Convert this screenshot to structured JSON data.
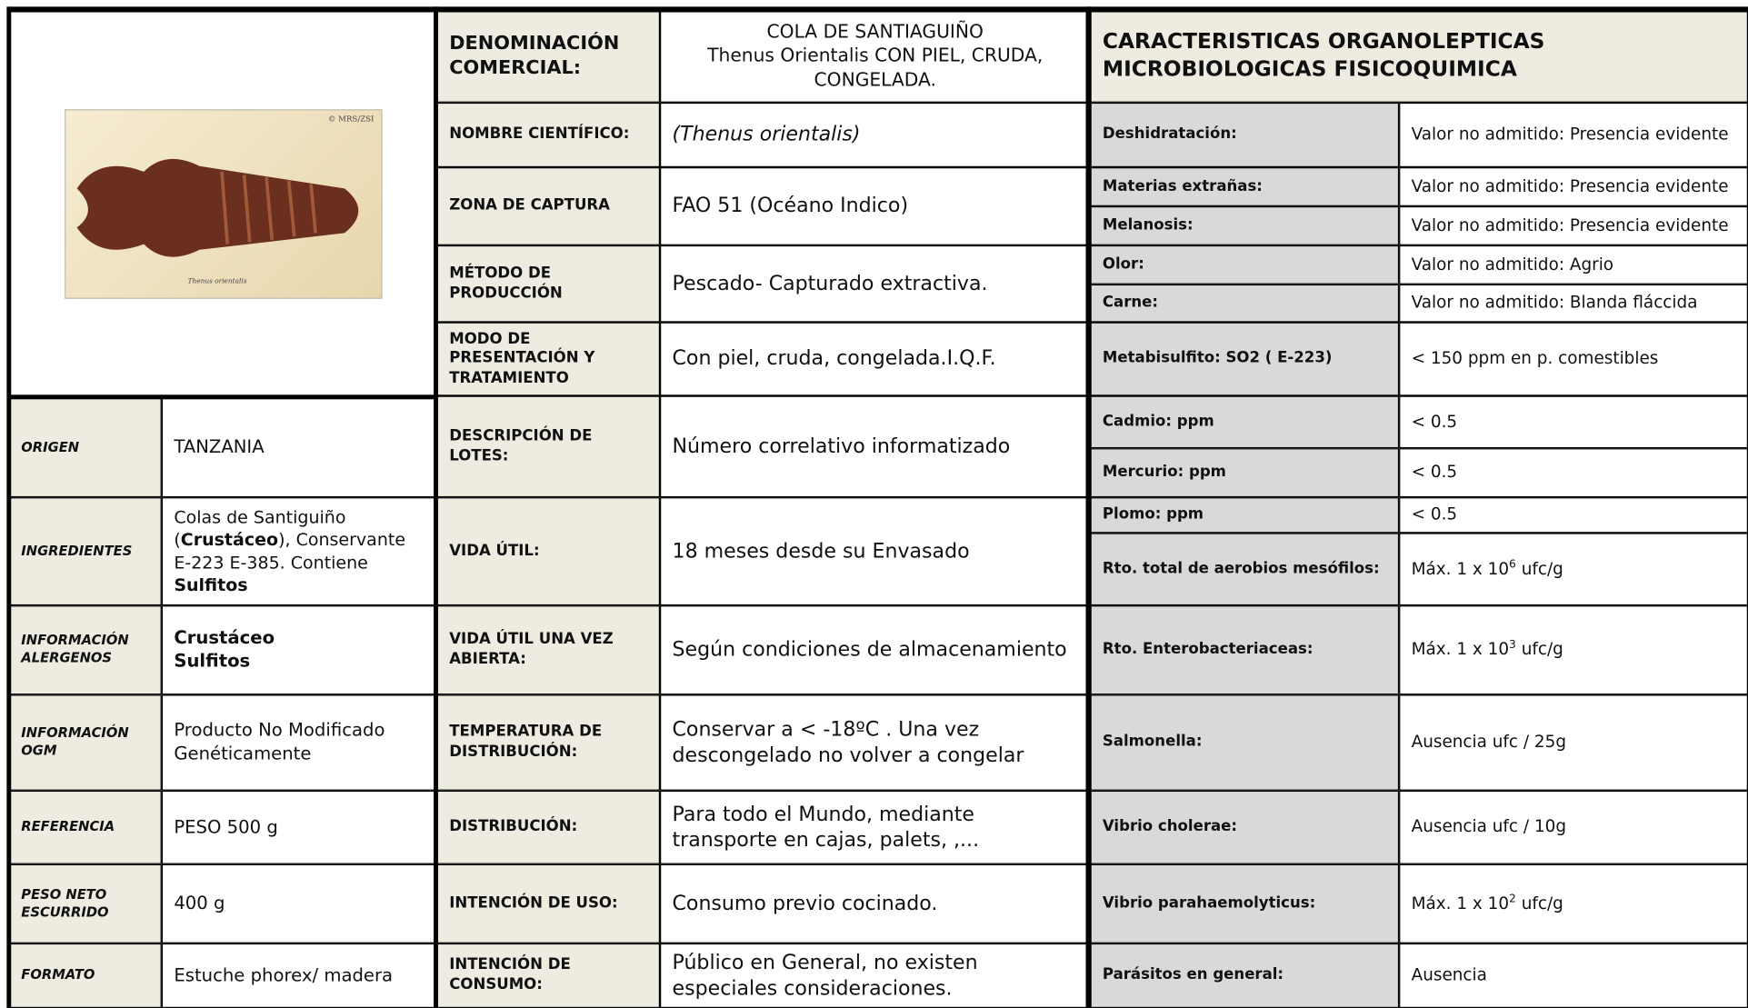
{
  "image": {
    "credit": "© MRS/ZSI",
    "caption": "Thenus orientalis"
  },
  "left_rows": [
    {
      "label": "ORIGEN",
      "value": "TANZANIA"
    },
    {
      "label": "INGREDIENTES",
      "value": [
        {
          "text": "Colas de Santiguiño (",
          "bold": false
        },
        {
          "text": "Crustáceo",
          "bold": true
        },
        {
          "text": "), Conservante E-223 E-385. Contiene ",
          "bold": false
        },
        {
          "text": "Sulfitos",
          "bold": true
        }
      ]
    },
    {
      "label": "INFORMACIÓN ALERGENOS",
      "value": [
        {
          "text": "Crustáceo",
          "bold": true,
          "line": true
        },
        {
          "text": "Sulfitos",
          "bold": true,
          "line": true
        }
      ]
    },
    {
      "label": "INFORMACIÓN OGM",
      "value": "Producto No Modificado Genéticamente"
    },
    {
      "label": "REFERENCIA",
      "value": "PESO 500 g"
    },
    {
      "label": "PESO NETO ESCURRIDO",
      "value": "400  g"
    },
    {
      "label": "FORMATO",
      "value": "Estuche phorex/ madera"
    }
  ],
  "middle_rows": [
    {
      "label": "DENOMINACIÓN COMERCIAL:",
      "value": [
        "COLA DE SANTIAGUIÑO",
        "Thenus Orientalis CON PIEL, CRUDA, CONGELADA."
      ]
    },
    {
      "label": "NOMBRE CIENTÍFICO:",
      "value": "(Thenus orientalis)"
    },
    {
      "label": "ZONA DE CAPTURA",
      "value": "FAO 51 (Océano Indico)"
    },
    {
      "label": "MÉTODO DE PRODUCCIÓN",
      "value": "Pescado- Capturado extractiva."
    },
    {
      "label": "MODO DE PRESENTACIÓN Y TRATAMIENTO",
      "value": "Con piel, cruda, congelada.I.Q.F."
    },
    {
      "label": "DESCRIPCIÓN DE LOTES:",
      "value": "Número correlativo informatizado"
    },
    {
      "label": "VIDA ÚTIL:",
      "value": "18 meses desde su Envasado"
    },
    {
      "label": "VIDA ÚTIL UNA VEZ ABIERTA:",
      "value": "Según condiciones de almacenamiento"
    },
    {
      "label": "TEMPERATURA DE DISTRIBUCIÓN:",
      "value": "Conservar a < -18ºC . Una vez descongelado no volver a congelar"
    },
    {
      "label": "DISTRIBUCIÓN:",
      "value": "Para todo el Mundo, mediante transporte en cajas, palets, ,..."
    },
    {
      "label": "INTENCIÓN DE USO:",
      "value": "Consumo previo cocinado."
    },
    {
      "label": "INTENCIÓN DE CONSUMO:",
      "value": "Público  en General, no existen especiales consideraciones."
    }
  ],
  "right_header": "CARACTERISTICAS ORGANOLEPTICAS MICROBIOLOGICAS FISICOQUIMICA",
  "right_rows": [
    {
      "label": "Deshidratación:",
      "value": "Valor no admitido: Presencia evidente"
    },
    {
      "label": "Materias extrañas:",
      "value": "Valor no admitido: Presencia evidente"
    },
    {
      "label": "Melanosis:",
      "value": "Valor no admitido: Presencia evidente"
    },
    {
      "label": "Olor:",
      "value": "Valor no admitido: Agrio"
    },
    {
      "label": "Carne:",
      "value": "Valor no admitido: Blanda fláccida"
    },
    {
      "label": "Metabisulfito: SO2 ( E-223)",
      "value": "< 150 ppm en p. comestibles"
    },
    {
      "label": "Cadmio: ppm",
      "value": "< 0.5"
    },
    {
      "label": "Mercurio: ppm",
      "value": "< 0.5"
    },
    {
      "label": "Plomo: ppm",
      "value": "< 0.5"
    },
    {
      "label": "Rto. total de aerobios mesófilos:",
      "value": {
        "base": "Máx. 1 x 10",
        "exp": "6",
        "unit": "ufc/g"
      }
    },
    {
      "label": "Rto. Enterobacteriaceas:",
      "value": {
        "base": "Máx. 1 x 10",
        "exp": "3",
        "unit": "ufc/g"
      }
    },
    {
      "label": "Salmonella:",
      "value": "Ausencia ufc / 25g"
    },
    {
      "label": "Vibrio cholerae:",
      "value": "Ausencia ufc / 10g"
    },
    {
      "label": "Vibrio parahaemolyticus:",
      "value": {
        "base": "Máx. 1 x 10",
        "exp": "2",
        "unit": "ufc/g"
      }
    },
    {
      "label": "Parásitos en general:",
      "value": "Ausencia"
    }
  ]
}
